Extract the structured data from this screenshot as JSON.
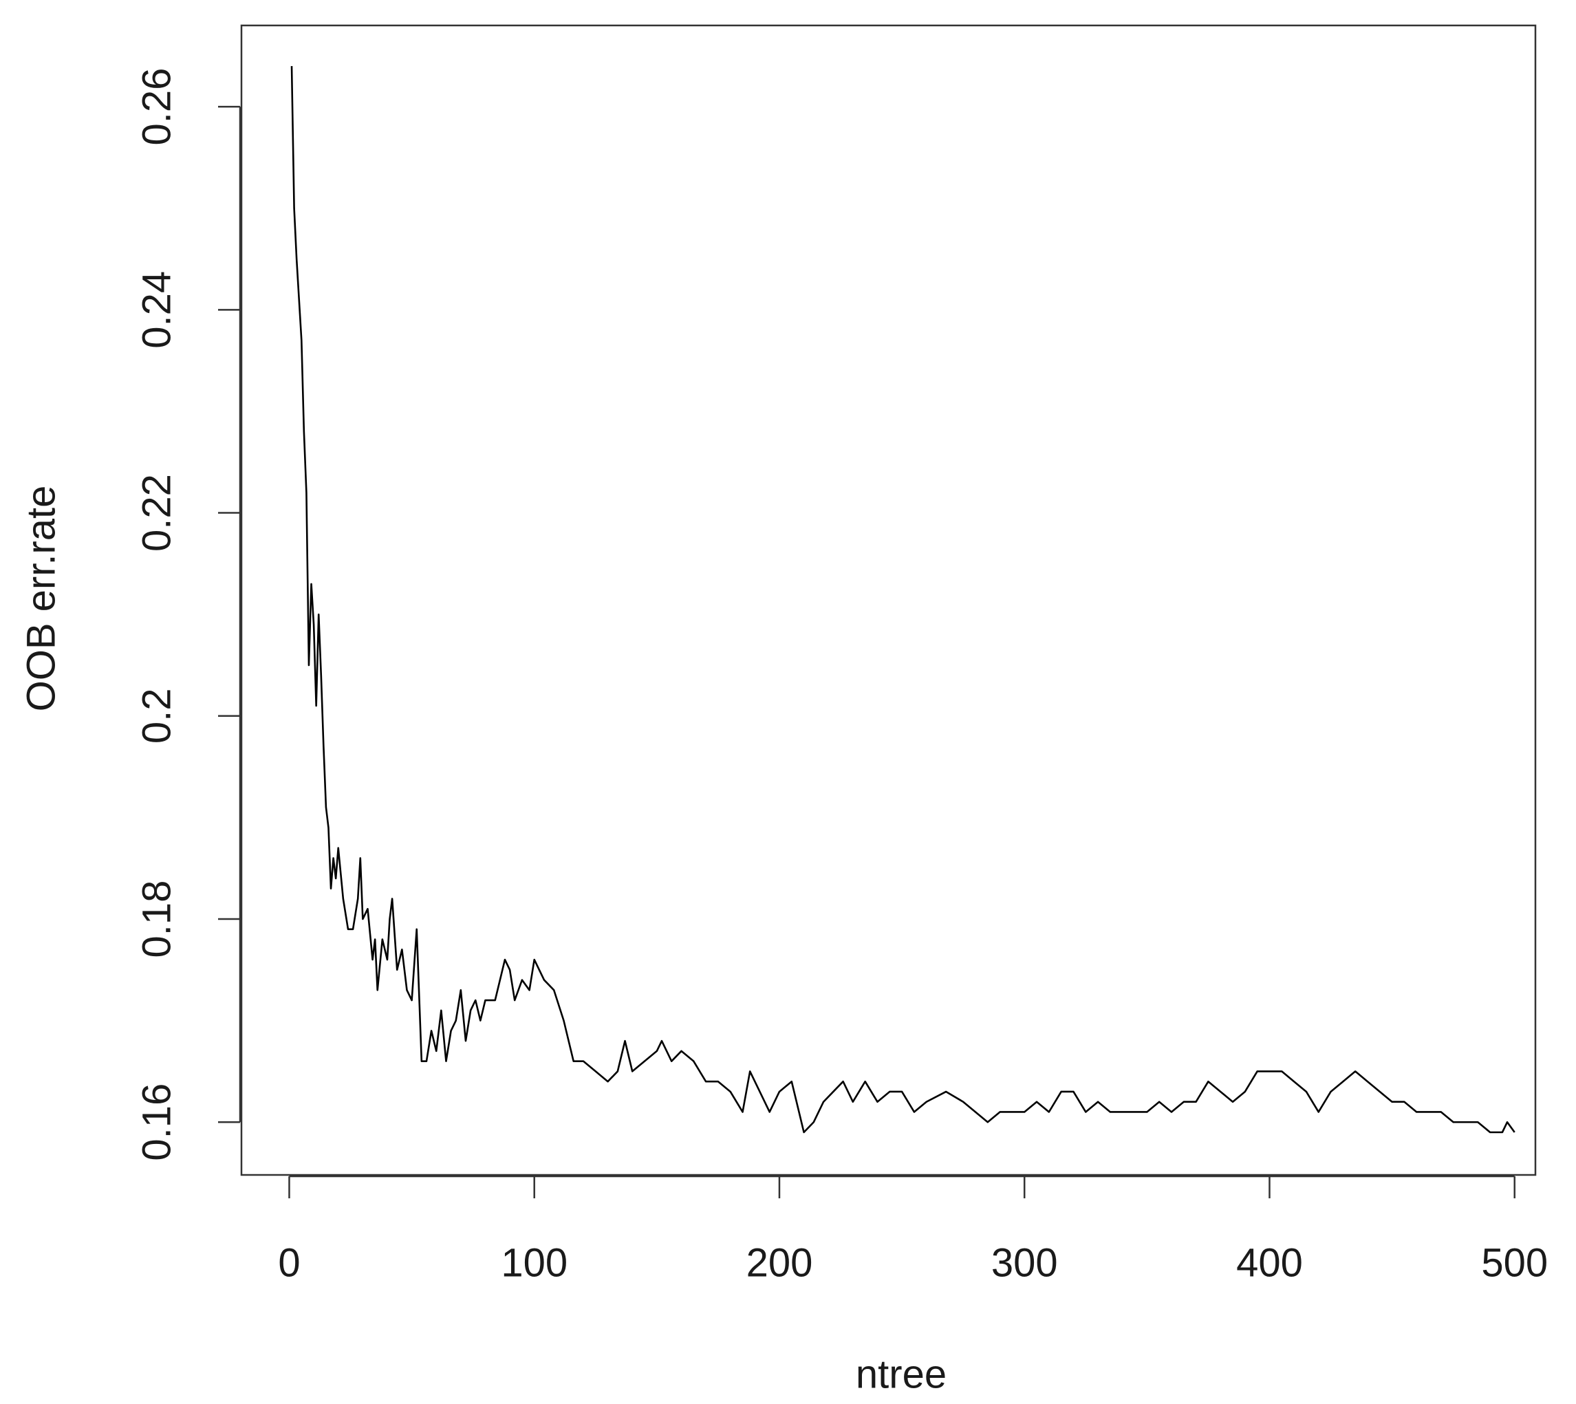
{
  "chart_data": {
    "type": "line",
    "x_label": "ntree",
    "y_label": "OOB err.rate",
    "x": [
      1,
      2,
      3,
      4,
      5,
      6,
      7,
      8,
      9,
      10,
      11,
      12,
      13,
      14,
      15,
      16,
      17,
      18,
      19,
      20,
      22,
      24,
      26,
      28,
      29,
      30,
      32,
      34,
      35,
      36,
      38,
      40,
      41,
      42,
      44,
      46,
      48,
      50,
      52,
      54,
      56,
      58,
      60,
      62,
      64,
      66,
      68,
      70,
      72,
      74,
      76,
      78,
      80,
      84,
      88,
      90,
      92,
      95,
      98,
      100,
      104,
      108,
      112,
      116,
      120,
      125,
      130,
      134,
      137,
      140,
      145,
      150,
      152,
      156,
      160,
      165,
      170,
      175,
      180,
      185,
      188,
      192,
      196,
      200,
      205,
      208,
      210,
      214,
      218,
      222,
      226,
      230,
      235,
      240,
      245,
      250,
      255,
      260,
      268,
      275,
      280,
      285,
      290,
      295,
      300,
      305,
      310,
      315,
      320,
      325,
      330,
      335,
      340,
      345,
      350,
      355,
      360,
      365,
      370,
      375,
      380,
      385,
      390,
      395,
      400,
      405,
      410,
      415,
      420,
      425,
      430,
      435,
      440,
      445,
      450,
      455,
      460,
      465,
      470,
      475,
      480,
      485,
      490,
      495,
      497,
      500
    ],
    "series": [
      {
        "name": "OOB",
        "color": "#000000",
        "values": [
          0.264,
          0.25,
          0.245,
          0.241,
          0.237,
          0.228,
          0.222,
          0.205,
          0.213,
          0.209,
          0.201,
          0.21,
          0.204,
          0.197,
          0.191,
          0.189,
          0.183,
          0.186,
          0.184,
          0.187,
          0.182,
          0.179,
          0.179,
          0.182,
          0.186,
          0.18,
          0.181,
          0.176,
          0.178,
          0.173,
          0.178,
          0.176,
          0.18,
          0.182,
          0.175,
          0.177,
          0.173,
          0.172,
          0.179,
          0.166,
          0.166,
          0.169,
          0.167,
          0.171,
          0.166,
          0.169,
          0.17,
          0.173,
          0.168,
          0.171,
          0.172,
          0.17,
          0.172,
          0.172,
          0.176,
          0.175,
          0.172,
          0.174,
          0.173,
          0.176,
          0.174,
          0.173,
          0.17,
          0.166,
          0.166,
          0.165,
          0.164,
          0.165,
          0.168,
          0.165,
          0.166,
          0.167,
          0.168,
          0.166,
          0.167,
          0.166,
          0.164,
          0.164,
          0.163,
          0.161,
          0.165,
          0.163,
          0.161,
          0.163,
          0.164,
          0.161,
          0.159,
          0.16,
          0.162,
          0.163,
          0.164,
          0.162,
          0.164,
          0.162,
          0.163,
          0.163,
          0.161,
          0.162,
          0.163,
          0.162,
          0.161,
          0.16,
          0.161,
          0.161,
          0.161,
          0.162,
          0.161,
          0.163,
          0.163,
          0.161,
          0.162,
          0.161,
          0.161,
          0.161,
          0.161,
          0.162,
          0.161,
          0.162,
          0.162,
          0.164,
          0.163,
          0.162,
          0.163,
          0.165,
          0.165,
          0.165,
          0.164,
          0.163,
          0.161,
          0.163,
          0.164,
          0.165,
          0.164,
          0.163,
          0.162,
          0.162,
          0.161,
          0.161,
          0.161,
          0.16,
          0.16,
          0.16,
          0.159,
          0.159,
          0.16,
          0.159
        ]
      }
    ],
    "xlim": [
      -19.5,
      508.5
    ],
    "ylim": [
      0.1548,
      0.268
    ],
    "xticks": [
      0,
      100,
      200,
      300,
      400,
      500
    ],
    "yticks": [
      0.16,
      0.18,
      0.2,
      0.22,
      0.24,
      0.26
    ]
  }
}
